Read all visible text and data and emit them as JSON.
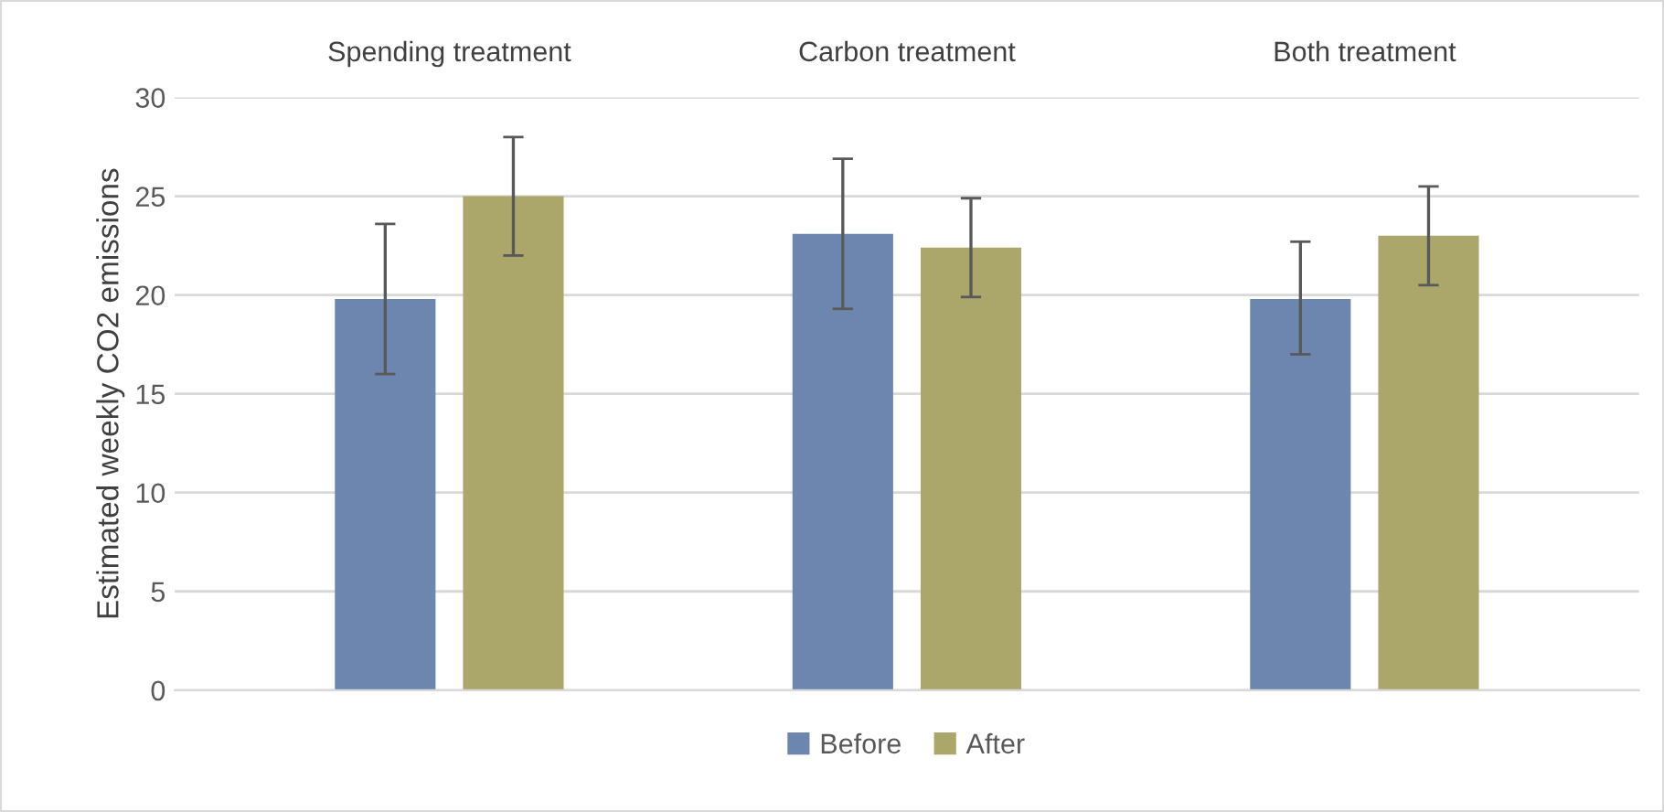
{
  "chart_data": {
    "type": "bar",
    "categories": [
      "Spending treatment",
      "Carbon treatment",
      "Both treatment"
    ],
    "ylabel": "Estimated weekly CO2 emissions",
    "ylim": [
      0,
      30
    ],
    "yticks": [
      0,
      5,
      10,
      15,
      20,
      25,
      30
    ],
    "grid": "y",
    "legend": "bottom",
    "series": [
      {
        "name": "Before",
        "color": "#6d86b0",
        "values": [
          19.8,
          23.1,
          19.8
        ],
        "errors": [
          [
            16.0,
            23.6
          ],
          [
            19.3,
            26.9
          ],
          [
            17.0,
            22.7
          ]
        ]
      },
      {
        "name": "After",
        "color": "#aba66a",
        "values": [
          25.0,
          22.4,
          23.0
        ],
        "errors": [
          [
            22.0,
            28.0
          ],
          [
            19.9,
            24.9
          ],
          [
            20.5,
            25.5
          ]
        ]
      }
    ]
  }
}
